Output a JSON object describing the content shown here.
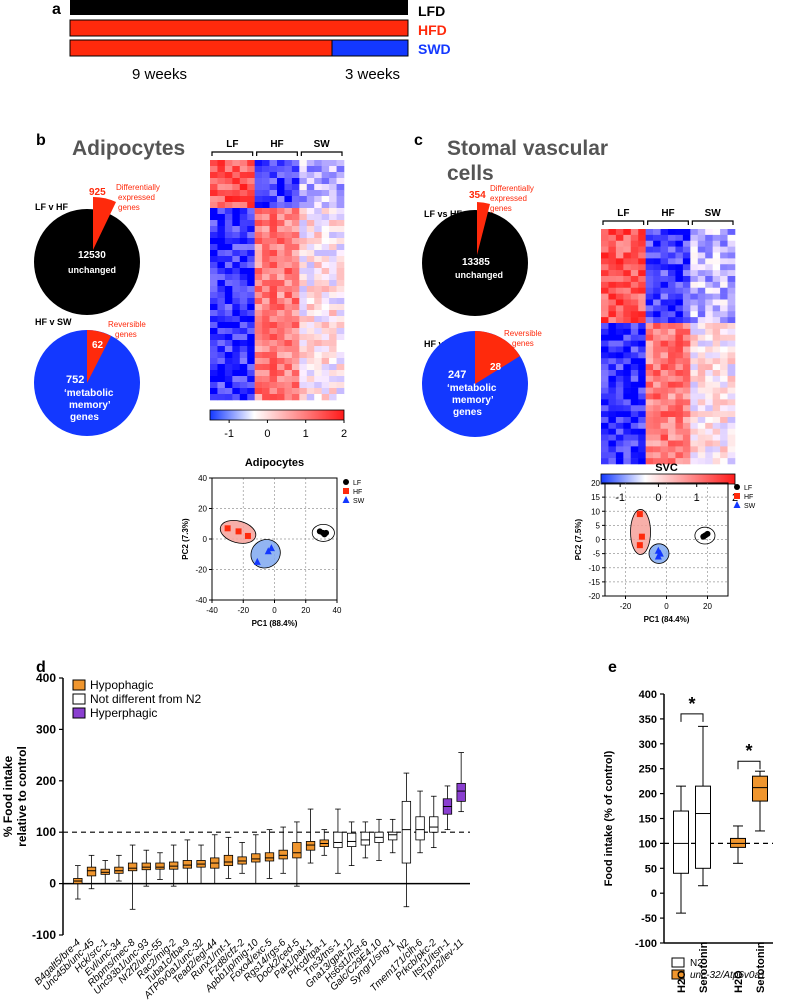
{
  "panel_labels": {
    "a": "a",
    "b": "b",
    "c": "c",
    "d": "d",
    "e": "e"
  },
  "diet_timeline": {
    "bars": [
      {
        "label": "LFD",
        "color": "#000000",
        "label_color": "#000000"
      },
      {
        "label": "HFD",
        "color": "#ff2a0c",
        "label_color": "#ff2a0c"
      },
      {
        "label": "SWD",
        "color": "#ff2a0c",
        "label_color": "#1338ff",
        "switch_color": "#1338ff"
      }
    ],
    "phase1": "9 weeks",
    "phase2": "3 weeks"
  },
  "adipocytes": {
    "title": "Adipocytes",
    "pie1": {
      "comparison": "LF v HF",
      "unchanged_count": "12530",
      "unchanged_label": "unchanged",
      "de_count": "925",
      "de_label": [
        "Differentially",
        "expressed",
        "genes"
      ]
    },
    "pie2": {
      "comparison": "HF v SW",
      "reversible_count": "62",
      "reversible_label": [
        "Reversible",
        "genes"
      ],
      "memory_count": "752",
      "memory_label": [
        "‘metabolic",
        "memory’",
        "genes"
      ]
    },
    "heatmap": {
      "groups": [
        "LF",
        "HF",
        "SW"
      ],
      "scale_ticks": [
        "-1",
        "0",
        "1",
        "2"
      ]
    },
    "pca": {
      "title": "Adipocytes",
      "xlabel": "PC1 (88.4%)",
      "ylabel": "PC2 (7.3%)",
      "xticks": [
        "-40",
        "-20",
        "0",
        "20",
        "40"
      ],
      "yticks": [
        "40",
        "20",
        "0",
        "-20",
        "-40"
      ],
      "legend": [
        "LF",
        "HF",
        "SW"
      ]
    }
  },
  "svc": {
    "title_lines": [
      "Stomal vascular",
      "cells"
    ],
    "pie1": {
      "comparison": "LF vs HF",
      "unchanged_count": "13385",
      "unchanged_label": "unchanged",
      "de_count": "354",
      "de_label": [
        "Differentially",
        "expressed",
        "genes"
      ]
    },
    "pie2": {
      "comparison": "HF vs SW",
      "reversible_count": "28",
      "reversible_label": [
        "Reversible",
        "genes"
      ],
      "memory_count": "247",
      "memory_label": [
        "‘metabolic",
        "memory’",
        "genes"
      ]
    },
    "heatmap": {
      "groups": [
        "LF",
        "HF",
        "SW"
      ],
      "scale_ticks": [
        "-1",
        "0",
        "1",
        "2"
      ]
    },
    "pca": {
      "title": "SVC",
      "xlabel": "PC1 (84.4%)",
      "ylabel": "PC2 (7.5%)",
      "xticks": [
        "-20",
        "0",
        "20"
      ],
      "yticks": [
        "20",
        "15",
        "10",
        "5",
        "0",
        "-5",
        "-10",
        "-15",
        "-20"
      ],
      "legend": [
        "LF",
        "HF",
        "SW"
      ]
    }
  },
  "food_intake": {
    "ylabel": [
      "% Food intake",
      "relative to control"
    ],
    "yticks": [
      "400",
      "300",
      "200",
      "100",
      "0",
      "-100"
    ],
    "legend": [
      "Hypophagic",
      "Not different from N2",
      "Hyperphagic"
    ]
  },
  "serotonin": {
    "ylabel": "Food intake (% of control)",
    "yticks": [
      "400",
      "350",
      "300",
      "250",
      "200",
      "150",
      "100",
      "50",
      "0",
      "-50",
      "-100"
    ],
    "xlabels": [
      "H2O",
      "Serotonin",
      "H2O",
      "Serotonin"
    ],
    "legend": [
      "N2",
      "unc-32/Atp6v0a1"
    ],
    "sig": "*"
  },
  "colors": {
    "red": "#ff2a0c",
    "blue": "#1338ff",
    "orange": "#f0962e",
    "purple": "#8a3fd0",
    "black": "#000000"
  },
  "chart_data": [
    {
      "type": "pie",
      "panel": "b",
      "title": "Adipocytes LF v HF",
      "categories": [
        "unchanged",
        "Differentially expressed genes"
      ],
      "values": [
        12530,
        925
      ]
    },
    {
      "type": "pie",
      "panel": "b",
      "title": "Adipocytes HF v SW",
      "categories": [
        "metabolic memory genes",
        "Reversible genes"
      ],
      "values": [
        752,
        62
      ]
    },
    {
      "type": "pie",
      "panel": "c",
      "title": "SVC LF vs HF",
      "categories": [
        "unchanged",
        "Differentially expressed genes"
      ],
      "values": [
        13385,
        354
      ]
    },
    {
      "type": "pie",
      "panel": "c",
      "title": "SVC HF vs SW",
      "categories": [
        "metabolic memory genes",
        "Reversible genes"
      ],
      "values": [
        247,
        28
      ]
    },
    {
      "type": "scatter",
      "panel": "b",
      "title": "Adipocytes",
      "xlabel": "PC1 (88.4%)",
      "ylabel": "PC2 (7.3%)",
      "xlim": [
        -40,
        40
      ],
      "ylim": [
        -40,
        40
      ],
      "series": [
        {
          "name": "LF",
          "points": [
            [
              29,
              5
            ],
            [
              31,
              4
            ],
            [
              33,
              4
            ],
            [
              32,
              3
            ]
          ]
        },
        {
          "name": "HF",
          "points": [
            [
              -30,
              7
            ],
            [
              -23,
              5
            ],
            [
              -17,
              2
            ]
          ]
        },
        {
          "name": "SW",
          "points": [
            [
              -11,
              -15
            ],
            [
              -4,
              -8
            ],
            [
              -2,
              -6
            ]
          ]
        }
      ]
    },
    {
      "type": "scatter",
      "panel": "c",
      "title": "SVC",
      "xlabel": "PC1 (84.4%)",
      "ylabel": "PC2 (7.5%)",
      "xlim": [
        -30,
        30
      ],
      "ylim": [
        -20,
        20
      ],
      "series": [
        {
          "name": "LF",
          "points": [
            [
              18,
              1
            ],
            [
              19,
              1.5
            ],
            [
              20,
              2
            ],
            [
              18,
              1
            ]
          ]
        },
        {
          "name": "HF",
          "points": [
            [
              -13,
              9
            ],
            [
              -12,
              1
            ],
            [
              -13,
              -2
            ]
          ]
        },
        {
          "name": "SW",
          "points": [
            [
              -4,
              -4
            ],
            [
              -3,
              -5
            ],
            [
              -4,
              -6
            ]
          ]
        }
      ]
    },
    {
      "type": "boxplot",
      "panel": "d",
      "ylabel": "% Food intake relative to control",
      "ylim": [
        -100,
        400
      ],
      "reference_line": 100,
      "categories": [
        "B4galt5/bre-4",
        "Unc45b/unc-45",
        "Hck/src-1",
        "Evl/unc-34",
        "Rbpms/mec-8",
        "Unc93b1/unc-93",
        "Nr2f2/unc-55",
        "Rac2/mig-2",
        "Tuba1c/tba-9",
        "ATP6v0a1/unc-32",
        "Tead2/egl-44",
        "Runx1/rnt-1",
        "Fzd8/cfz-2",
        "Apbb1ip/mig-10",
        "Foxo4/exc-5",
        "Rgs14/rgs-6",
        "Dock2/ced-5",
        "Pak1/pak-1",
        "Prkcd/tpa-1",
        "Tns3/tns-1",
        "Gna13/gpa-12",
        "Hs6st1/hst-6",
        "Galc/C29E4.10",
        "Syngr1/sng-1",
        "N2",
        "Tmem171/clh-6",
        "Prkcb/pkc-2",
        "Itsn1/itsn-1",
        "Tpm2/lev-11"
      ],
      "group": [
        "hypo",
        "hypo",
        "hypo",
        "hypo",
        "hypo",
        "hypo",
        "hypo",
        "hypo",
        "hypo",
        "hypo",
        "hypo",
        "hypo",
        "hypo",
        "hypo",
        "hypo",
        "hypo",
        "hypo",
        "hypo",
        "hypo",
        "none",
        "none",
        "none",
        "none",
        "none",
        "none",
        "none",
        "none",
        "hyper",
        "hyper"
      ],
      "q1": [
        0,
        15,
        18,
        20,
        25,
        27,
        28,
        28,
        30,
        32,
        30,
        35,
        38,
        42,
        44,
        48,
        50,
        65,
        72,
        70,
        72,
        75,
        80,
        85,
        40,
        85,
        100,
        135,
        160
      ],
      "median": [
        5,
        25,
        22,
        25,
        30,
        32,
        32,
        34,
        36,
        38,
        40,
        42,
        44,
        48,
        50,
        55,
        60,
        75,
        78,
        80,
        82,
        85,
        90,
        95,
        105,
        105,
        110,
        150,
        180
      ],
      "q3": [
        10,
        32,
        28,
        32,
        40,
        40,
        40,
        42,
        45,
        45,
        50,
        55,
        52,
        58,
        60,
        65,
        80,
        82,
        85,
        100,
        98,
        100,
        100,
        100,
        160,
        130,
        130,
        165,
        195
      ],
      "min": [
        -30,
        -10,
        0,
        5,
        -50,
        -5,
        8,
        -5,
        0,
        0,
        0,
        10,
        20,
        0,
        10,
        20,
        -5,
        40,
        55,
        20,
        35,
        50,
        45,
        60,
        -45,
        60,
        70,
        105,
        140
      ],
      "max": [
        35,
        55,
        45,
        55,
        75,
        65,
        60,
        75,
        85,
        75,
        95,
        90,
        80,
        95,
        105,
        110,
        120,
        145,
        105,
        145,
        120,
        120,
        125,
        125,
        215,
        180,
        170,
        190,
        255
      ]
    },
    {
      "type": "boxplot",
      "panel": "e",
      "ylabel": "Food intake (% of control)",
      "ylim": [
        -100,
        400
      ],
      "reference_line": 100,
      "categories": [
        "H2O",
        "Serotonin",
        "H2O",
        "Serotonin"
      ],
      "series": [
        {
          "name": "N2",
          "categories": [
            "H2O",
            "Serotonin"
          ],
          "min": [
            -40,
            15
          ],
          "q1": [
            40,
            50
          ],
          "median": [
            100,
            160
          ],
          "q3": [
            165,
            215
          ],
          "max": [
            215,
            335
          ]
        },
        {
          "name": "unc-32/Atp6v0a1",
          "categories": [
            "H2O",
            "Serotonin"
          ],
          "min": [
            60,
            125
          ],
          "q1": [
            92,
            185
          ],
          "median": [
            100,
            212
          ],
          "q3": [
            110,
            235
          ],
          "max": [
            135,
            245
          ]
        }
      ],
      "significance": [
        "*",
        "*"
      ]
    }
  ]
}
